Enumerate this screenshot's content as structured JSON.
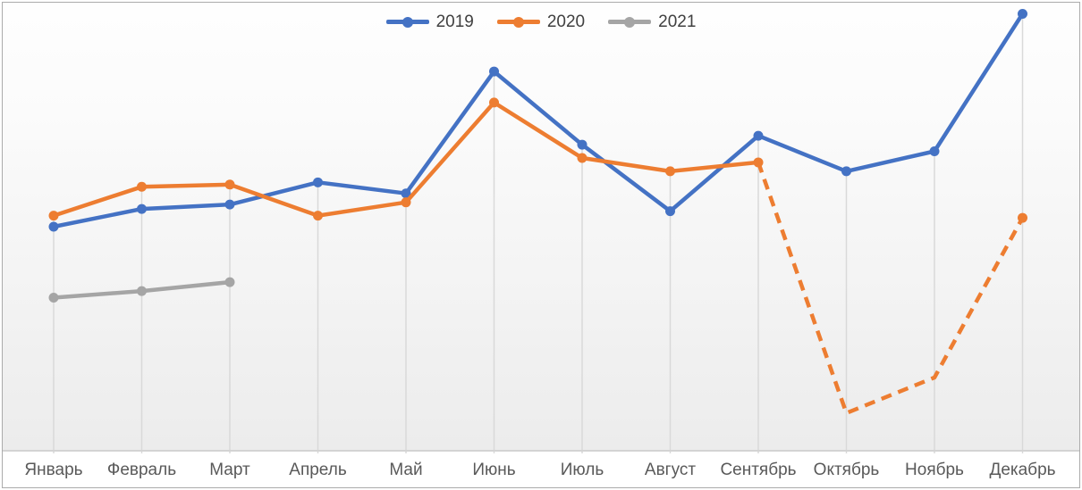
{
  "chart_data": {
    "type": "line",
    "title": "",
    "categories": [
      "Январь",
      "Февраль",
      "Март",
      "Апрель",
      "Май",
      "Июнь",
      "Июль",
      "Август",
      "Сентябрь",
      "Октябрь",
      "Ноябрь",
      "Декабрь"
    ],
    "series": [
      {
        "name": "2019",
        "color": "#4472C4",
        "line_style": "solid",
        "values": [
          50.5,
          54.5,
          55.5,
          60.5,
          58,
          85.5,
          69,
          54,
          71,
          63,
          67.5,
          98.5
        ],
        "dash_from_index": null,
        "marker_skip_indices": []
      },
      {
        "name": "2020",
        "color": "#ED7D31",
        "line_style": "solid-then-dashed",
        "values": [
          53,
          59.5,
          60,
          53,
          56,
          78.5,
          66,
          63,
          65,
          8.5,
          16.5,
          52.5
        ],
        "dash_from_index": 8,
        "marker_skip_indices": [
          9,
          10
        ]
      },
      {
        "name": "2021",
        "color": "#A5A5A5",
        "line_style": "solid",
        "values": [
          34.5,
          36,
          38,
          null,
          null,
          null,
          null,
          null,
          null,
          null,
          null,
          null
        ],
        "dash_from_index": null,
        "marker_skip_indices": []
      }
    ],
    "xlabel": "",
    "ylabel": "",
    "ylim": [
      0,
      100
    ],
    "y_axis_visible": false,
    "grid": "vertical-drop-lines-per-category",
    "legend_position": "top-center",
    "gridline_color": "#d9d9d9",
    "axis_line_color": "#d3d3d3",
    "axis_label_color": "#595959",
    "legend_text_color": "#404040",
    "frame_border_color": "#ababab"
  }
}
